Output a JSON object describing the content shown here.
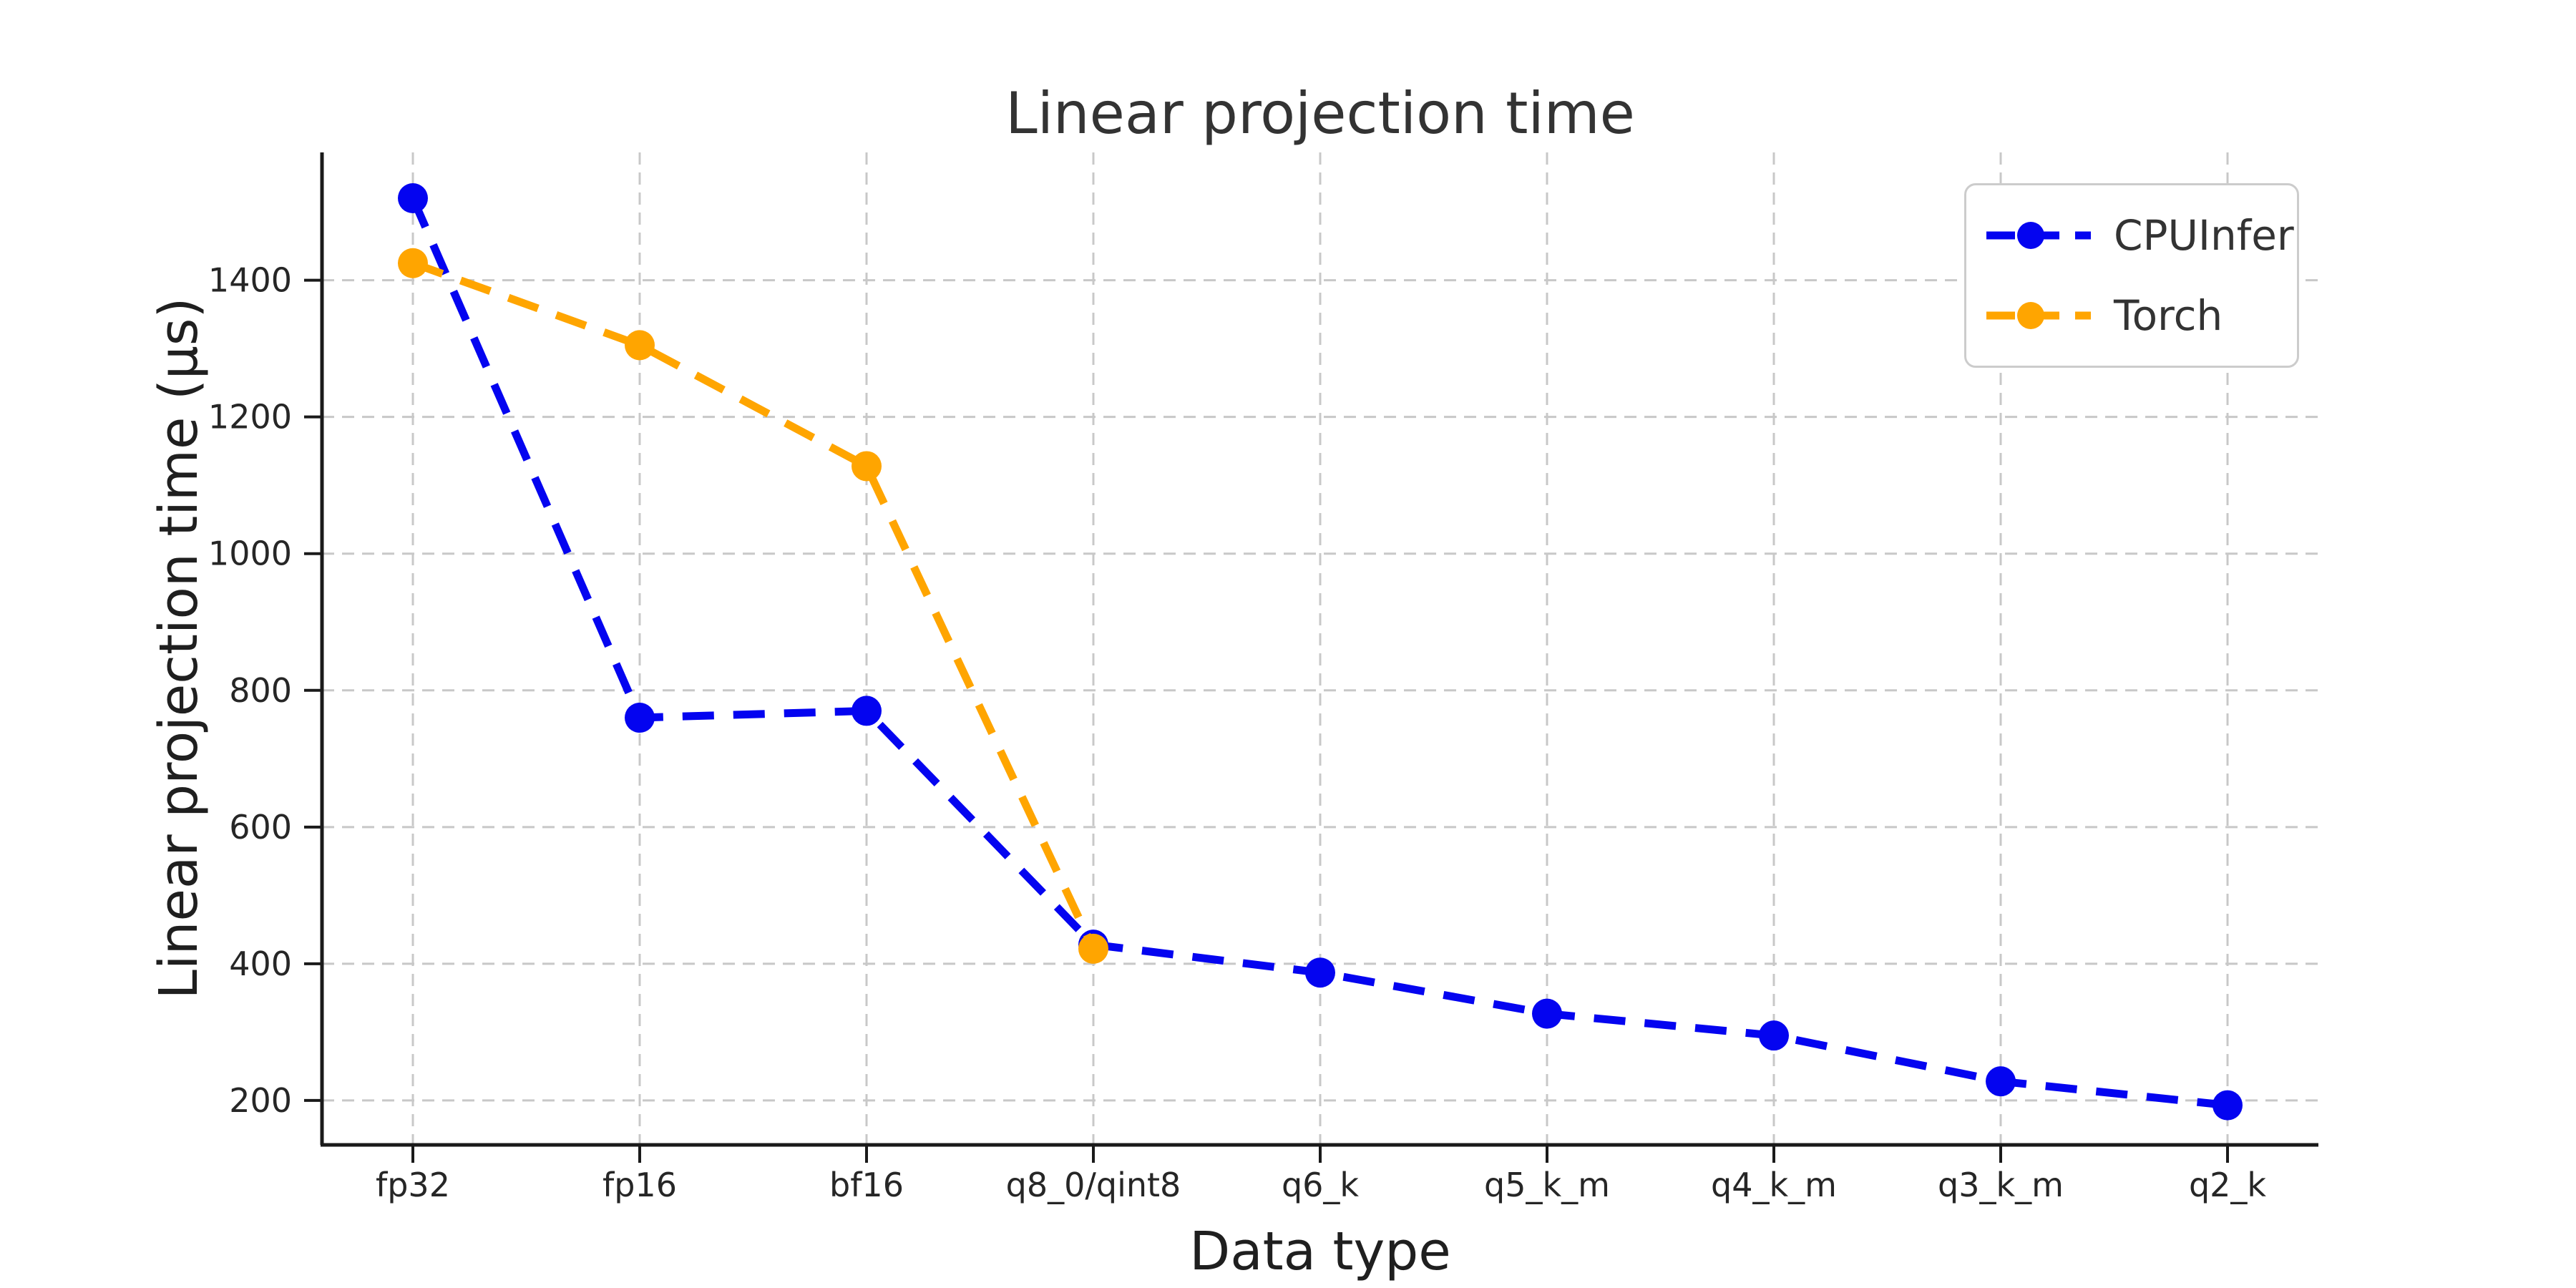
{
  "chart_data": {
    "type": "line",
    "title": "Linear projection time",
    "xlabel": "Data type",
    "ylabel": "Linear projection time (µs)",
    "categories": [
      "fp32",
      "fp16",
      "bf16",
      "q8_0/qint8",
      "q6_k",
      "q5_k_m",
      "q4_k_m",
      "q3_k_m",
      "q2_k"
    ],
    "series": [
      {
        "name": "CPUInfer",
        "color": "#0404f0",
        "values": [
          1520,
          760,
          770,
          428,
          387,
          327,
          295,
          228,
          193
        ]
      },
      {
        "name": "Torch",
        "color": "#ffa500",
        "values": [
          1425,
          1305,
          1128,
          422,
          null,
          null,
          null,
          null,
          null
        ]
      }
    ],
    "yticks": [
      200,
      400,
      600,
      800,
      1000,
      1200,
      1400
    ],
    "ylim": [
      135,
      1587
    ],
    "grid": true,
    "grid_style": "dashed",
    "line_style": "dashed",
    "marker": "circle",
    "legend_position": "upper right",
    "legend_labels": [
      "CPUInfer",
      "Torch"
    ]
  },
  "style_colors": {
    "grid": "#c8c8c8",
    "spine": "#1a1a1a",
    "tick_text": "#262626",
    "title_text": "#333333",
    "legend_border": "#cccccc"
  }
}
